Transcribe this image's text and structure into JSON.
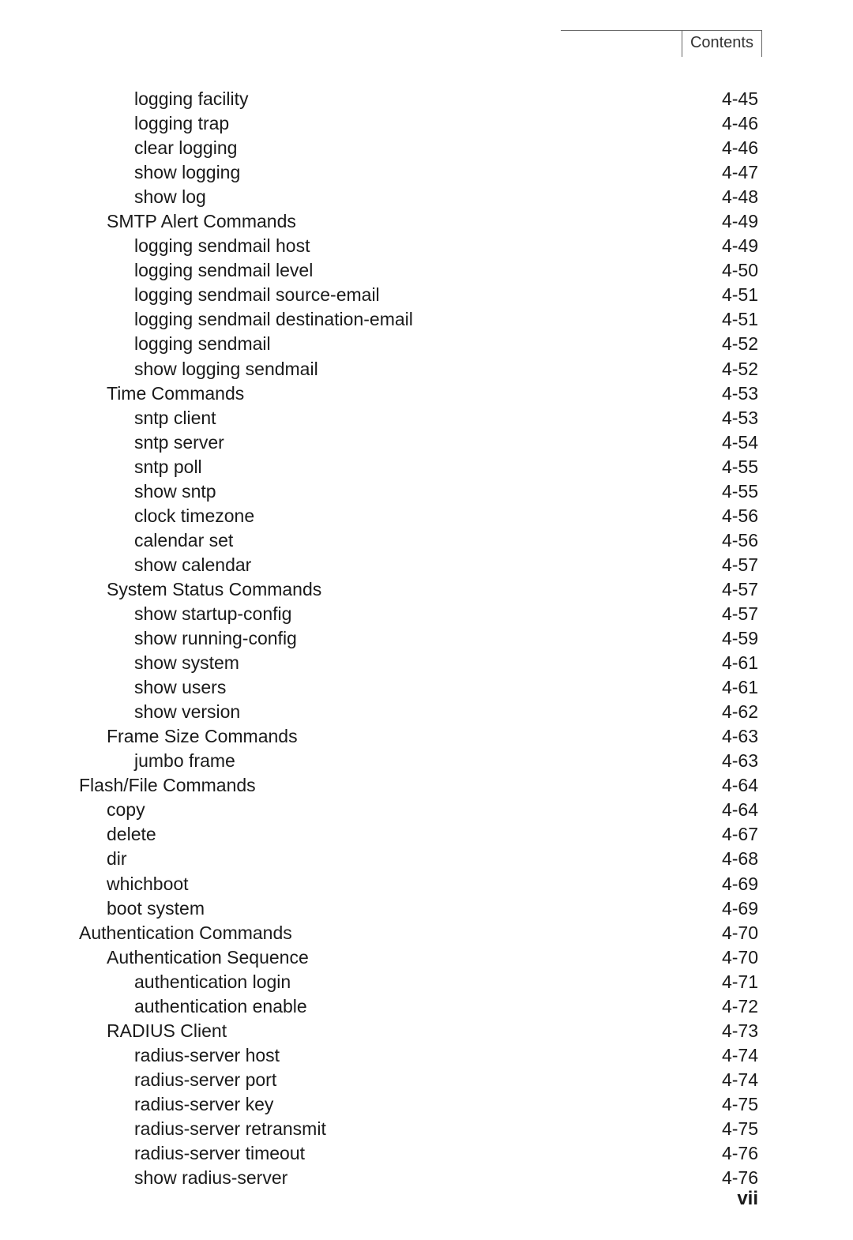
{
  "header": {
    "label": "Contents"
  },
  "footer": {
    "page": "vii"
  },
  "toc": {
    "entries": [
      {
        "label": "logging facility",
        "page": "4-45",
        "indent": 2
      },
      {
        "label": "logging trap",
        "page": "4-46",
        "indent": 2
      },
      {
        "label": "clear logging",
        "page": "4-46",
        "indent": 2
      },
      {
        "label": "show logging",
        "page": "4-47",
        "indent": 2
      },
      {
        "label": "show log",
        "page": "4-48",
        "indent": 2
      },
      {
        "label": "SMTP Alert Commands",
        "page": "4-49",
        "indent": 1
      },
      {
        "label": "logging sendmail host",
        "page": "4-49",
        "indent": 2
      },
      {
        "label": "logging sendmail level",
        "page": "4-50",
        "indent": 2
      },
      {
        "label": "logging sendmail source-email",
        "page": "4-51",
        "indent": 2
      },
      {
        "label": "logging sendmail destination-email",
        "page": "4-51",
        "indent": 2
      },
      {
        "label": "logging sendmail",
        "page": "4-52",
        "indent": 2
      },
      {
        "label": "show logging sendmail",
        "page": "4-52",
        "indent": 2
      },
      {
        "label": "Time Commands",
        "page": "4-53",
        "indent": 1
      },
      {
        "label": "sntp client",
        "page": "4-53",
        "indent": 2
      },
      {
        "label": "sntp server",
        "page": "4-54",
        "indent": 2
      },
      {
        "label": "sntp poll",
        "page": "4-55",
        "indent": 2
      },
      {
        "label": "show sntp",
        "page": "4-55",
        "indent": 2
      },
      {
        "label": "clock timezone",
        "page": "4-56",
        "indent": 2
      },
      {
        "label": "calendar set",
        "page": "4-56",
        "indent": 2
      },
      {
        "label": "show calendar",
        "page": "4-57",
        "indent": 2
      },
      {
        "label": "System Status Commands",
        "page": "4-57",
        "indent": 1
      },
      {
        "label": "show startup-config",
        "page": "4-57",
        "indent": 2
      },
      {
        "label": "show running-config",
        "page": "4-59",
        "indent": 2
      },
      {
        "label": "show system",
        "page": "4-61",
        "indent": 2
      },
      {
        "label": "show users",
        "page": "4-61",
        "indent": 2
      },
      {
        "label": "show version",
        "page": "4-62",
        "indent": 2
      },
      {
        "label": "Frame Size Commands",
        "page": "4-63",
        "indent": 1
      },
      {
        "label": "jumbo frame",
        "page": "4-63",
        "indent": 2
      },
      {
        "label": "Flash/File Commands",
        "page": "4-64",
        "indent": 0
      },
      {
        "label": "copy",
        "page": "4-64",
        "indent": 1
      },
      {
        "label": "delete",
        "page": "4-67",
        "indent": 1
      },
      {
        "label": "dir",
        "page": "4-68",
        "indent": 1
      },
      {
        "label": "whichboot",
        "page": "4-69",
        "indent": 1
      },
      {
        "label": "boot system",
        "page": "4-69",
        "indent": 1
      },
      {
        "label": "Authentication Commands",
        "page": "4-70",
        "indent": 0
      },
      {
        "label": "Authentication Sequence",
        "page": "4-70",
        "indent": 1
      },
      {
        "label": "authentication login",
        "page": "4-71",
        "indent": 2
      },
      {
        "label": "authentication enable",
        "page": "4-72",
        "indent": 2
      },
      {
        "label": "RADIUS Client",
        "page": "4-73",
        "indent": 1
      },
      {
        "label": "radius-server host",
        "page": "4-74",
        "indent": 2
      },
      {
        "label": "radius-server port",
        "page": "4-74",
        "indent": 2
      },
      {
        "label": "radius-server key",
        "page": "4-75",
        "indent": 2
      },
      {
        "label": "radius-server retransmit",
        "page": "4-75",
        "indent": 2
      },
      {
        "label": "radius-server timeout",
        "page": "4-76",
        "indent": 2
      },
      {
        "label": "show radius-server",
        "page": "4-76",
        "indent": 2
      }
    ]
  }
}
